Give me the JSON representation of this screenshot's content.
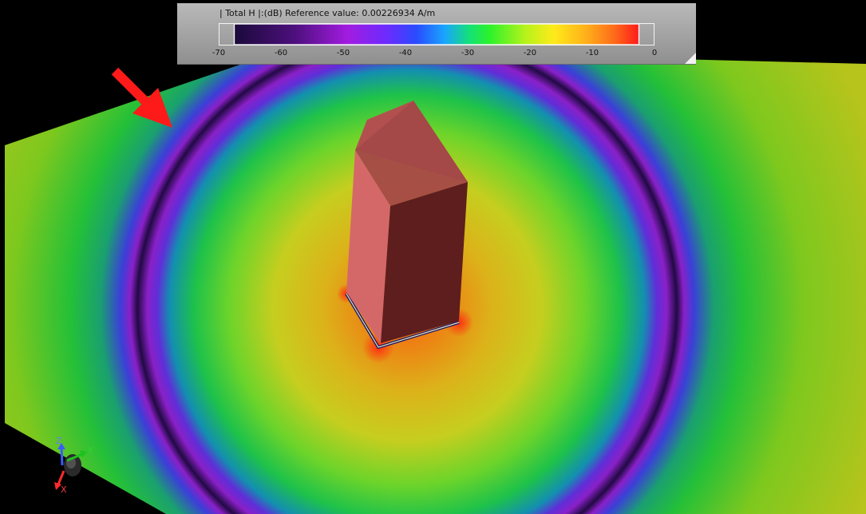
{
  "legend": {
    "title": "| Total H |:(dB) Reference value: 0.00226934 A/m",
    "ticks": [
      "-70",
      "-60",
      "-50",
      "-40",
      "-30",
      "-20",
      "-10",
      "0"
    ],
    "colormap": [
      "#1a0a3a",
      "#4d0f7d",
      "#a21ce0",
      "#6a2cff",
      "#2a4bff",
      "#19a5ff",
      "#14e07a",
      "#2bf22b",
      "#b7f21a",
      "#ffea1a",
      "#ffb01a",
      "#ff6a1a",
      "#ff1a1a"
    ]
  },
  "axes": {
    "x": "X",
    "y": "Y",
    "z": "Z"
  },
  "icons": {
    "annotation": "red-arrow-icon",
    "axes": "axes-triad-icon"
  }
}
